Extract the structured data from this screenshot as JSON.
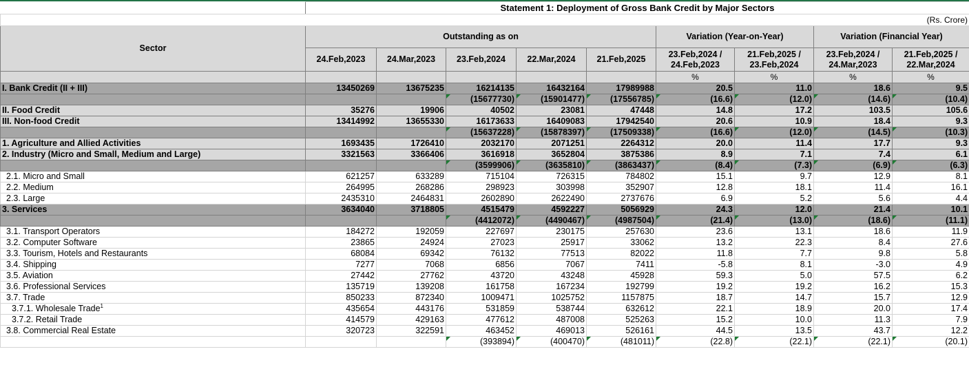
{
  "title": "Statement 1: Deployment of Gross Bank Credit by Major Sectors",
  "unit": "(Rs. Crore)",
  "header": {
    "sector": "Sector",
    "outstanding": "Outstanding as on",
    "var_yoy": "Variation (Year-on-Year)",
    "var_fy": "Variation (Financial Year)",
    "dates": [
      "24.Feb,2023",
      "24.Mar,2023",
      "23.Feb,2024",
      "22.Mar,2024",
      "21.Feb,2025"
    ],
    "yoy_cols": [
      [
        "23.Feb,2024 /",
        "24.Feb,2023"
      ],
      [
        "21.Feb,2025 /",
        "23.Feb,2024"
      ]
    ],
    "fy_cols": [
      [
        "23.Feb,2024 /",
        "24.Mar,2023"
      ],
      [
        "21.Feb,2025 /",
        "22.Mar,2024"
      ]
    ],
    "pct": "%"
  },
  "rows": [
    {
      "label": "I. Bank Credit (II + III)",
      "style": "dark bold",
      "values": [
        "13450269",
        "13675235",
        "16214135",
        "16432164",
        "17989988",
        "20.5",
        "11.0",
        "18.6",
        "9.5"
      ]
    },
    {
      "label": "",
      "style": "dark bold",
      "values": [
        "",
        "",
        "(15677730)",
        "(15901477)",
        "(17556785)",
        "(16.6)",
        "(12.0)",
        "(14.6)",
        "(10.4)"
      ],
      "tri": true
    },
    {
      "label": "II. Food Credit",
      "style": "light bold",
      "values": [
        "35276",
        "19906",
        "40502",
        "23081",
        "47448",
        "14.8",
        "17.2",
        "103.5",
        "105.6"
      ]
    },
    {
      "label": "III. Non-food Credit",
      "style": "light bold",
      "values": [
        "13414992",
        "13655330",
        "16173633",
        "16409083",
        "17942540",
        "20.6",
        "10.9",
        "18.4",
        "9.3"
      ]
    },
    {
      "label": "",
      "style": "dark bold",
      "values": [
        "",
        "",
        "(15637228)",
        "(15878397)",
        "(17509338)",
        "(16.6)",
        "(12.0)",
        "(14.5)",
        "(10.3)"
      ],
      "tri": true
    },
    {
      "label": "1. Agriculture and Allied Activities",
      "style": "light bold",
      "values": [
        "1693435",
        "1726410",
        "2032170",
        "2071251",
        "2264312",
        "20.0",
        "11.4",
        "17.7",
        "9.3"
      ]
    },
    {
      "label": "2. Industry (Micro and Small, Medium and Large)",
      "style": "light bold",
      "values": [
        "3321563",
        "3366406",
        "3616918",
        "3652804",
        "3875386",
        "8.9",
        "7.1",
        "7.4",
        "6.1"
      ]
    },
    {
      "label": "",
      "style": "dark bold",
      "values": [
        "",
        "",
        "(3599906)",
        "(3635810)",
        "(3863437)",
        "(8.4)",
        "(7.3)",
        "(6.9)",
        "(6.3)"
      ],
      "tri": true
    },
    {
      "label": "2.1. Micro and Small",
      "style": "white ind",
      "values": [
        "621257",
        "633289",
        "715104",
        "726315",
        "784802",
        "15.1",
        "9.7",
        "12.9",
        "8.1"
      ]
    },
    {
      "label": "2.2. Medium",
      "style": "white ind",
      "values": [
        "264995",
        "268286",
        "298923",
        "303998",
        "352907",
        "12.8",
        "18.1",
        "11.4",
        "16.1"
      ]
    },
    {
      "label": "2.3. Large",
      "style": "white ind",
      "values": [
        "2435310",
        "2464831",
        "2602890",
        "2622490",
        "2737676",
        "6.9",
        "5.2",
        "5.6",
        "4.4"
      ]
    },
    {
      "label": "3. Services",
      "style": "dark bold",
      "values": [
        "3634040",
        "3718805",
        "4515479",
        "4592227",
        "5056929",
        "24.3",
        "12.0",
        "21.4",
        "10.1"
      ]
    },
    {
      "label": "",
      "style": "dark bold",
      "values": [
        "",
        "",
        "(4412072)",
        "(4490467)",
        "(4987504)",
        "(21.4)",
        "(13.0)",
        "(18.6)",
        "(11.1)"
      ],
      "tri": true
    },
    {
      "label": "3.1. Transport Operators",
      "style": "white ind",
      "values": [
        "184272",
        "192059",
        "227697",
        "230175",
        "257630",
        "23.6",
        "13.1",
        "18.6",
        "11.9"
      ]
    },
    {
      "label": "3.2. Computer Software",
      "style": "white ind",
      "values": [
        "23865",
        "24924",
        "27023",
        "25917",
        "33062",
        "13.2",
        "22.3",
        "8.4",
        "27.6"
      ]
    },
    {
      "label": "3.3. Tourism, Hotels and Restaurants",
      "style": "white ind",
      "values": [
        "68084",
        "69342",
        "76132",
        "77513",
        "82022",
        "11.8",
        "7.7",
        "9.8",
        "5.8"
      ]
    },
    {
      "label": "3.4. Shipping",
      "style": "white ind",
      "values": [
        "7277",
        "7068",
        "6856",
        "7067",
        "7411",
        "-5.8",
        "8.1",
        "-3.0",
        "4.9"
      ]
    },
    {
      "label": "3.5. Aviation",
      "style": "white ind",
      "values": [
        "27442",
        "27762",
        "43720",
        "43248",
        "45928",
        "59.3",
        "5.0",
        "57.5",
        "6.2"
      ]
    },
    {
      "label": "3.6. Professional Services",
      "style": "white ind",
      "values": [
        "135719",
        "139208",
        "161758",
        "167234",
        "192799",
        "19.2",
        "19.2",
        "16.2",
        "15.3"
      ]
    },
    {
      "label": "3.7. Trade",
      "style": "white ind",
      "values": [
        "850233",
        "872340",
        "1009471",
        "1025752",
        "1157875",
        "18.7",
        "14.7",
        "15.7",
        "12.9"
      ]
    },
    {
      "label": "3.7.1. Wholesale Trade",
      "sup": "1",
      "style": "white ind2",
      "values": [
        "435654",
        "443176",
        "531859",
        "538744",
        "632612",
        "22.1",
        "18.9",
        "20.0",
        "17.4"
      ]
    },
    {
      "label": "3.7.2. Retail Trade",
      "style": "white ind2",
      "values": [
        "414579",
        "429163",
        "477612",
        "487008",
        "525263",
        "15.2",
        "10.0",
        "11.3",
        "7.9"
      ]
    },
    {
      "label": "3.8. Commercial Real Estate",
      "style": "white ind",
      "values": [
        "320723",
        "322591",
        "463452",
        "469013",
        "526161",
        "44.5",
        "13.5",
        "43.7",
        "12.2"
      ]
    },
    {
      "label": "",
      "style": "white",
      "values": [
        "",
        "",
        "(393894)",
        "(400470)",
        "(481011)",
        "(22.8)",
        "(22.1)",
        "(22.1)",
        "(20.1)"
      ],
      "tri": true
    }
  ]
}
